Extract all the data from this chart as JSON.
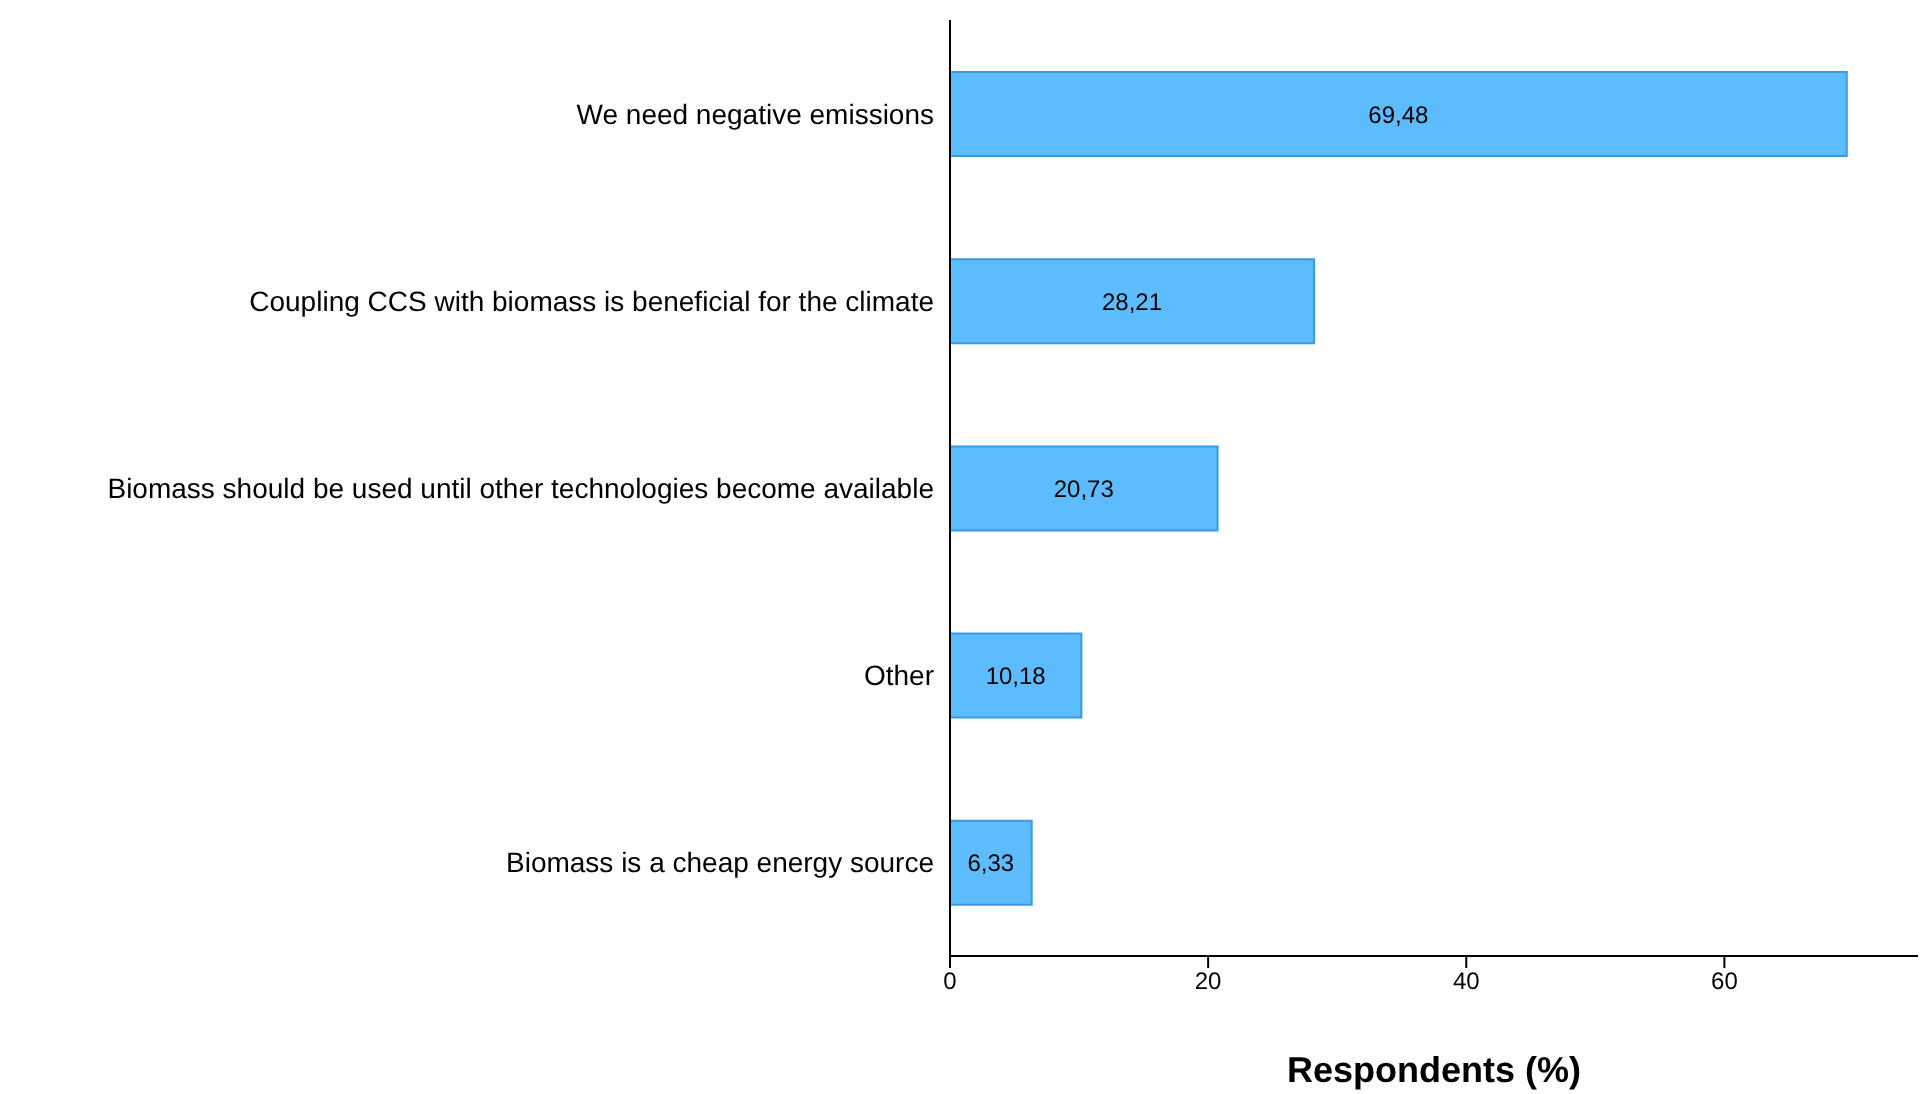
{
  "chart_data": {
    "type": "bar",
    "orientation": "horizontal",
    "categories": [
      "We need negative emissions",
      "Coupling CCS with biomass is beneficial for the climate",
      "Biomass should be used until other technologies become available",
      "Other",
      "Biomass is a cheap energy source"
    ],
    "values": [
      69.48,
      28.21,
      20.73,
      10.18,
      6.33
    ],
    "value_labels": [
      "69,48",
      "28,21",
      "20,73",
      "10,18",
      "6,33"
    ],
    "color": "#5cbcfe",
    "xlabel": "Respondents (%)",
    "xlim": [
      0,
      75
    ],
    "xticks": [
      0,
      20,
      40,
      60
    ],
    "grid": false,
    "legend": false
  }
}
